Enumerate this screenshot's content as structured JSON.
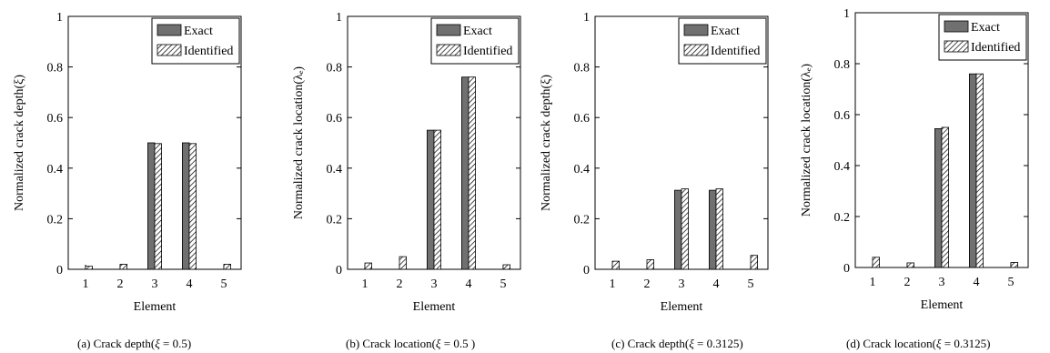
{
  "chart_data": [
    {
      "type": "bar",
      "categories": [
        "1",
        "2",
        "3",
        "4",
        "5"
      ],
      "series": [
        {
          "name": "Exact",
          "values": [
            0,
            0,
            0.5,
            0.5,
            0
          ],
          "color": "#707070"
        },
        {
          "name": "Identified",
          "values": [
            0.012,
            0.02,
            0.497,
            0.497,
            0.02
          ],
          "pattern": "diagonal-hatch"
        }
      ],
      "xlabel": "Element",
      "ylabel": "Normalized crack depth(ξ)",
      "ylim": [
        0,
        1
      ],
      "yticks": [
        "0",
        "0.2",
        "0.4",
        "0.6",
        "0.8",
        "1"
      ],
      "legend": "top-right",
      "caption": {
        "prefix": "(a) Crack depth(",
        "variable": "ξ",
        "rest": " = 0.5)"
      }
    },
    {
      "type": "bar",
      "categories": [
        "1",
        "2",
        "3",
        "4",
        "5"
      ],
      "series": [
        {
          "name": "Exact",
          "values": [
            0,
            0,
            0.55,
            0.76,
            0
          ],
          "color": "#707070"
        },
        {
          "name": "Identified",
          "values": [
            0.025,
            0.05,
            0.55,
            0.76,
            0.018
          ],
          "pattern": "diagonal-hatch"
        }
      ],
      "xlabel": "Element",
      "ylabel": "Normalized crack location(λₑ)",
      "ylim": [
        0,
        1
      ],
      "yticks": [
        "0",
        "0.2",
        "0.4",
        "0.6",
        "0.8",
        "1"
      ],
      "legend": "top-right",
      "caption": {
        "prefix": "(b) Crack location(",
        "variable": "ξ",
        "rest": " = 0.5 )"
      }
    },
    {
      "type": "bar",
      "categories": [
        "1",
        "2",
        "3",
        "4",
        "5"
      ],
      "series": [
        {
          "name": "Exact",
          "values": [
            0,
            0,
            0.3125,
            0.3125,
            0
          ],
          "color": "#707070"
        },
        {
          "name": "Identified",
          "values": [
            0.032,
            0.038,
            0.318,
            0.318,
            0.055
          ],
          "pattern": "diagonal-hatch"
        }
      ],
      "xlabel": "Element",
      "ylabel": "Normalized crack depth(ξ)",
      "ylim": [
        0,
        1
      ],
      "yticks": [
        "0",
        "0.2",
        "0.4",
        "0.6",
        "0.8",
        "1"
      ],
      "legend": "top-right",
      "caption": {
        "prefix": "(c) Crack depth(",
        "variable": "ξ",
        "rest": " = 0.3125)"
      }
    },
    {
      "type": "bar",
      "categories": [
        "1",
        "2",
        "3",
        "4",
        "5"
      ],
      "series": [
        {
          "name": "Exact",
          "values": [
            0,
            0,
            0.545,
            0.76,
            0
          ],
          "color": "#707070"
        },
        {
          "name": "Identified",
          "values": [
            0.04,
            0.018,
            0.55,
            0.76,
            0.02
          ],
          "pattern": "diagonal-hatch"
        }
      ],
      "xlabel": "Element",
      "ylabel": "Normalized crack location(λₑ)",
      "ylim": [
        0,
        1
      ],
      "yticks": [
        "0",
        "0.2",
        "0.4",
        "0.6",
        "0.8",
        "1"
      ],
      "legend": "top-right",
      "caption": {
        "prefix": "(d) Crack location(",
        "variable": "ξ",
        "rest": " = 0.3125)"
      }
    }
  ]
}
